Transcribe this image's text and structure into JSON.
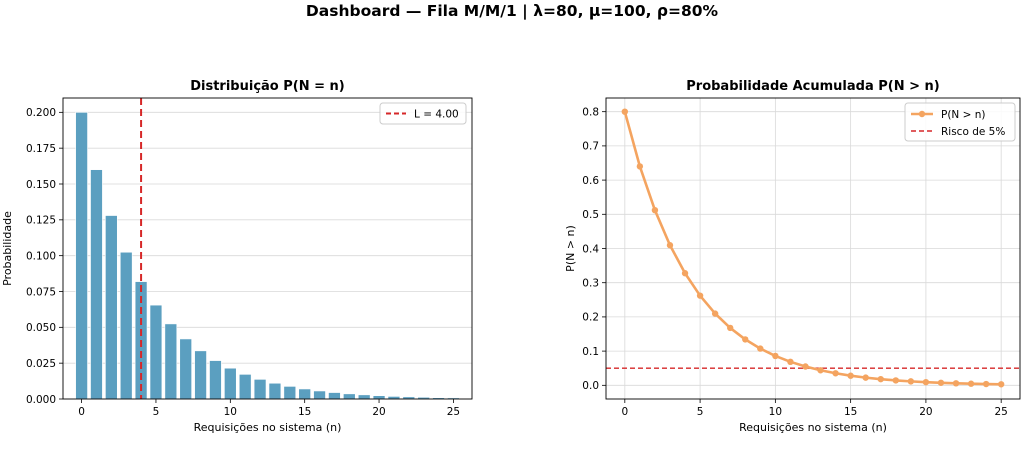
{
  "suptitle": "Dashboard — Fila M/M/1  |  λ=80, μ=100, ρ=80%",
  "colors": {
    "bar": "#5b9fc0",
    "bar_edge": "#ffffff",
    "ref_line": "#d62728",
    "curve": "#f4a460",
    "grid": "#d9d9d9"
  },
  "chart_data": [
    {
      "type": "bar",
      "title": "Distribuição P(N = n)",
      "xlabel": "Requisições no sistema (n)",
      "ylabel": "Probabilidade",
      "xlim": [
        -1.25,
        26.25
      ],
      "ylim": [
        0,
        0.21
      ],
      "xticks": [
        0,
        5,
        10,
        15,
        20,
        25
      ],
      "yticks": [
        0.0,
        0.025,
        0.05,
        0.075,
        0.1,
        0.125,
        0.15,
        0.175,
        0.2
      ],
      "ytick_labels": [
        "0.000",
        "0.025",
        "0.050",
        "0.075",
        "0.100",
        "0.125",
        "0.150",
        "0.175",
        "0.200"
      ],
      "grid": "y",
      "x": [
        0,
        1,
        2,
        3,
        4,
        5,
        6,
        7,
        8,
        9,
        10,
        11,
        12,
        13,
        14,
        15,
        16,
        17,
        18,
        19,
        20,
        21,
        22,
        23,
        24,
        25
      ],
      "values": [
        0.2,
        0.16,
        0.128,
        0.1024,
        0.0819,
        0.0655,
        0.0524,
        0.0419,
        0.0336,
        0.0268,
        0.0215,
        0.0172,
        0.0137,
        0.011,
        0.0088,
        0.007,
        0.0056,
        0.0045,
        0.0036,
        0.0029,
        0.0023,
        0.0018,
        0.0015,
        0.0012,
        0.0009,
        0.0008
      ],
      "vline": {
        "x": 4.0,
        "label": "L = 4.00"
      },
      "legend": "top-right"
    },
    {
      "type": "line",
      "title": "Probabilidade Acumulada P(N > n)",
      "xlabel": "Requisições no sistema (n)",
      "ylabel": "P(N > n)",
      "xlim": [
        -1.25,
        26.25
      ],
      "ylim": [
        -0.04,
        0.84
      ],
      "xticks": [
        0,
        5,
        10,
        15,
        20,
        25
      ],
      "yticks": [
        0.0,
        0.1,
        0.2,
        0.3,
        0.4,
        0.5,
        0.6,
        0.7,
        0.8
      ],
      "ytick_labels": [
        "0.0",
        "0.1",
        "0.2",
        "0.3",
        "0.4",
        "0.5",
        "0.6",
        "0.7",
        "0.8"
      ],
      "grid": "both",
      "series": [
        {
          "name": "P(N > n)",
          "x": [
            0,
            1,
            2,
            3,
            4,
            5,
            6,
            7,
            8,
            9,
            10,
            11,
            12,
            13,
            14,
            15,
            16,
            17,
            18,
            19,
            20,
            21,
            22,
            23,
            24,
            25
          ],
          "values": [
            0.8,
            0.64,
            0.512,
            0.4096,
            0.3277,
            0.2621,
            0.2097,
            0.1678,
            0.1342,
            0.1074,
            0.0859,
            0.0687,
            0.055,
            0.044,
            0.0352,
            0.0281,
            0.0225,
            0.018,
            0.0144,
            0.0115,
            0.0092,
            0.0074,
            0.0059,
            0.0047,
            0.0038,
            0.003
          ]
        }
      ],
      "hline": {
        "y": 0.05,
        "label": "Risco de 5%"
      },
      "legend": "top-right"
    }
  ]
}
